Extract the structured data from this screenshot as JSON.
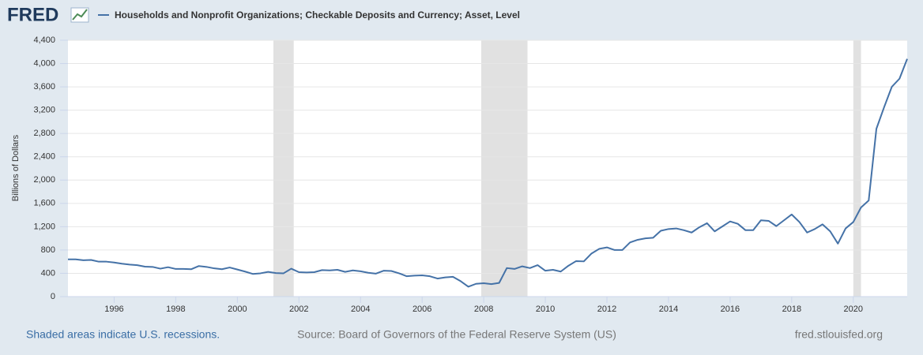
{
  "logo": "FRED",
  "chart_data": {
    "type": "line",
    "title": "Households and Nonprofit Organizations; Checkable Deposits and Currency; Asset, Level",
    "y_label": "Billions of Dollars",
    "x": [
      1994.5,
      1994.75,
      1995,
      1995.25,
      1995.5,
      1995.75,
      1996,
      1996.25,
      1996.5,
      1996.75,
      1997,
      1997.25,
      1997.5,
      1997.75,
      1998,
      1998.25,
      1998.5,
      1998.75,
      1999,
      1999.25,
      1999.5,
      1999.75,
      2000,
      2000.25,
      2000.5,
      2000.75,
      2001,
      2001.25,
      2001.5,
      2001.75,
      2002,
      2002.25,
      2002.5,
      2002.75,
      2003,
      2003.25,
      2003.5,
      2003.75,
      2004,
      2004.25,
      2004.5,
      2004.75,
      2005,
      2005.25,
      2005.5,
      2005.75,
      2006,
      2006.25,
      2006.5,
      2006.75,
      2007,
      2007.25,
      2007.5,
      2007.75,
      2008,
      2008.25,
      2008.5,
      2008.75,
      2009,
      2009.25,
      2009.5,
      2009.75,
      2010,
      2010.25,
      2010.5,
      2010.75,
      2011,
      2011.25,
      2011.5,
      2011.75,
      2012,
      2012.25,
      2012.5,
      2012.75,
      2013,
      2013.25,
      2013.5,
      2013.75,
      2014,
      2014.25,
      2014.5,
      2014.75,
      2015,
      2015.25,
      2015.5,
      2015.75,
      2016,
      2016.25,
      2016.5,
      2016.75,
      2017,
      2017.25,
      2017.5,
      2017.75,
      2018,
      2018.25,
      2018.5,
      2018.75,
      2019,
      2019.25,
      2019.5,
      2019.75,
      2020,
      2020.25,
      2020.5,
      2020.75,
      2021,
      2021.25,
      2021.5,
      2021.75
    ],
    "series": [
      {
        "name": "Households and Nonprofit Organizations; Checkable Deposits and Currency; Asset, Level",
        "color": "#4572a7",
        "values": [
          640,
          640,
          625,
          630,
          600,
          600,
          585,
          565,
          550,
          540,
          515,
          510,
          480,
          505,
          475,
          475,
          470,
          525,
          510,
          485,
          470,
          500,
          465,
          430,
          390,
          400,
          425,
          405,
          400,
          480,
          420,
          415,
          420,
          455,
          450,
          460,
          425,
          450,
          435,
          410,
          395,
          445,
          440,
          400,
          350,
          360,
          365,
          350,
          310,
          330,
          340,
          265,
          170,
          220,
          230,
          215,
          235,
          490,
          475,
          520,
          490,
          540,
          445,
          460,
          430,
          530,
          610,
          605,
          740,
          820,
          845,
          800,
          800,
          930,
          975,
          1000,
          1010,
          1130,
          1160,
          1170,
          1140,
          1100,
          1190,
          1260,
          1120,
          1205,
          1290,
          1250,
          1140,
          1140,
          1310,
          1300,
          1210,
          1310,
          1410,
          1280,
          1100,
          1160,
          1240,
          1120,
          910,
          1170,
          1280,
          1530,
          1650,
          2880,
          3250,
          3600,
          3740,
          4080
        ]
      }
    ],
    "recessions": [
      [
        2001.17,
        2001.83
      ],
      [
        2007.92,
        2009.42
      ],
      [
        2020.0,
        2020.25
      ]
    ],
    "xlim": [
      1994.5,
      2021.75
    ],
    "xticks": [
      1996,
      1998,
      2000,
      2002,
      2004,
      2006,
      2008,
      2010,
      2012,
      2014,
      2016,
      2018,
      2020
    ],
    "ylim": [
      0,
      4400
    ],
    "yticks": [
      0,
      400,
      800,
      {
        "value": 1200,
        "label": "1,200"
      },
      {
        "value": 1600,
        "label": "1,600"
      },
      {
        "value": 2000,
        "label": "2,000"
      },
      {
        "value": 2400,
        "label": "2,400"
      },
      {
        "value": 2800,
        "label": "2,800"
      },
      {
        "value": 3200,
        "label": "3,200"
      },
      {
        "value": 3600,
        "label": "3,600"
      },
      {
        "value": 4000,
        "label": "4,000"
      },
      {
        "value": 4400,
        "label": "4,400"
      }
    ],
    "grid": true
  },
  "footer": {
    "note": "Shaded areas indicate U.S. recessions.",
    "source": "Source: Board of Governors of the Federal Reserve System (US)",
    "site": "fred.stlouisfed.org"
  }
}
